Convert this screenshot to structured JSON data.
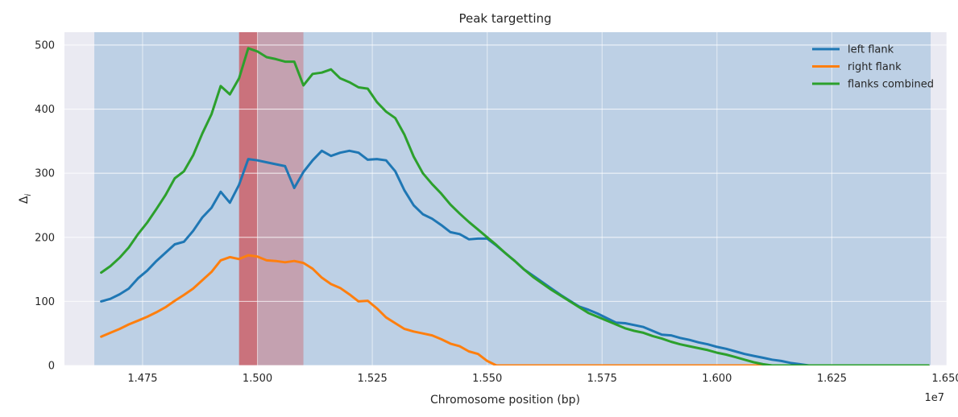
{
  "chart_data": {
    "type": "line",
    "title": "Peak targetting",
    "xlabel": "Chromosome position (bp)",
    "ylabel": "Δi",
    "ylabel_main": "Δ",
    "ylabel_sub": "i",
    "x_offset_label": "1e7",
    "xlim": [
      14580000,
      16500000
    ],
    "ylim": [
      0,
      520
    ],
    "x_ticks": [
      14750000,
      15000000,
      15250000,
      15500000,
      15750000,
      16000000,
      16250000,
      16500000
    ],
    "x_tick_labels": [
      "1.475",
      "1.500",
      "1.525",
      "1.550",
      "1.575",
      "1.600",
      "1.625",
      "1.650"
    ],
    "y_ticks": [
      0,
      100,
      200,
      300,
      400,
      500
    ],
    "y_tick_labels": [
      "0",
      "100",
      "200",
      "300",
      "400",
      "500"
    ],
    "grid": true,
    "legend_position": "top-right",
    "background_color": "#eaeaf2",
    "spans": [
      {
        "x0": 14645000,
        "x1": 16465000,
        "color": "#1f77b4",
        "opacity": 0.22
      },
      {
        "x0": 14960000,
        "x1": 15100000,
        "color": "#d62728",
        "opacity": 0.28
      },
      {
        "x0": 14960000,
        "x1": 15000000,
        "color": "#d62728",
        "opacity": 0.38
      }
    ],
    "x": [
      14660000,
      14680000,
      14700000,
      14720000,
      14740000,
      14760000,
      14780000,
      14800000,
      14820000,
      14840000,
      14860000,
      14880000,
      14900000,
      14920000,
      14940000,
      14960000,
      14980000,
      15000000,
      15020000,
      15040000,
      15060000,
      15080000,
      15100000,
      15120000,
      15140000,
      15160000,
      15180000,
      15200000,
      15220000,
      15240000,
      15260000,
      15280000,
      15300000,
      15320000,
      15340000,
      15360000,
      15380000,
      15400000,
      15420000,
      15440000,
      15460000,
      15480000,
      15500000,
      15520000,
      15540000,
      15560000,
      15580000,
      15600000,
      15620000,
      15640000,
      15660000,
      15680000,
      15700000,
      15720000,
      15740000,
      15760000,
      15780000,
      15800000,
      15820000,
      15840000,
      15860000,
      15880000,
      15900000,
      15920000,
      15940000,
      15960000,
      15980000,
      16000000,
      16020000,
      16040000,
      16060000,
      16080000,
      16100000,
      16120000,
      16140000,
      16160000,
      16180000,
      16200000,
      16220000,
      16240000,
      16260000,
      16280000,
      16300000,
      16320000,
      16340000,
      16360000,
      16380000,
      16400000,
      16420000,
      16440000,
      16460000
    ],
    "series": [
      {
        "name": "left flank",
        "color": "#1f77b4",
        "values": [
          100,
          104,
          111,
          120,
          136,
          148,
          163,
          176,
          189,
          193,
          210,
          231,
          246,
          271,
          254,
          282,
          322,
          320,
          317,
          314,
          311,
          277,
          302,
          320,
          335,
          327,
          332,
          335,
          332,
          321,
          322,
          320,
          303,
          273,
          250,
          236,
          229,
          219,
          208,
          205,
          197,
          198,
          198,
          187,
          175,
          163,
          150,
          140,
          130,
          120,
          110,
          101,
          92,
          87,
          81,
          74,
          67,
          66,
          63,
          60,
          54,
          48,
          47,
          43,
          40,
          36,
          33,
          29,
          26,
          22,
          18,
          15,
          12,
          9,
          7,
          4,
          2,
          0,
          0,
          0,
          0,
          0,
          0,
          0,
          0,
          0,
          0,
          0,
          0,
          0,
          0
        ]
      },
      {
        "name": "right flank",
        "color": "#ff7f0e",
        "values": [
          45,
          51,
          57,
          64,
          70,
          76,
          83,
          91,
          101,
          110,
          120,
          133,
          146,
          164,
          169,
          166,
          172,
          170,
          164,
          163,
          161,
          163,
          160,
          151,
          137,
          127,
          121,
          111,
          100,
          101,
          89,
          75,
          66,
          57,
          53,
          50,
          47,
          41,
          34,
          30,
          22,
          18,
          7,
          0,
          0,
          0,
          0,
          0,
          0,
          0,
          0,
          0,
          0,
          0,
          0,
          0,
          0,
          0,
          0,
          0,
          0,
          0,
          0,
          0,
          0,
          0,
          0,
          0,
          0,
          0,
          0,
          0,
          0,
          0,
          0,
          0,
          0,
          0,
          0,
          0,
          0,
          0,
          0,
          0,
          0,
          0,
          0,
          0,
          0,
          0,
          0
        ]
      },
      {
        "name": "flanks combined",
        "color": "#2ca02c",
        "values": [
          145,
          155,
          168,
          184,
          205,
          223,
          244,
          266,
          292,
          303,
          328,
          362,
          392,
          436,
          423,
          448,
          495,
          490,
          481,
          478,
          474,
          474,
          437,
          455,
          457,
          462,
          448,
          442,
          434,
          432,
          411,
          396,
          386,
          360,
          326,
          300,
          283,
          268,
          251,
          237,
          224,
          212,
          200,
          188,
          175,
          163,
          150,
          138,
          128,
          118,
          109,
          100,
          91,
          82,
          76,
          70,
          64,
          58,
          54,
          51,
          46,
          42,
          37,
          33,
          30,
          27,
          24,
          20,
          17,
          13,
          9,
          5,
          2,
          0,
          0,
          0,
          0,
          0,
          0,
          0,
          0,
          0,
          0,
          0,
          0,
          0,
          0,
          0,
          0,
          0,
          0
        ]
      }
    ]
  }
}
